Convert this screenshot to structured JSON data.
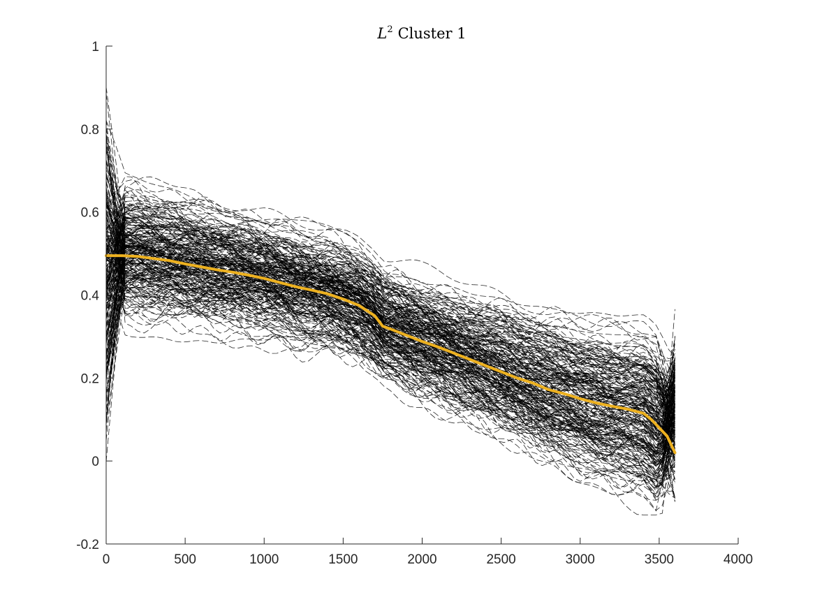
{
  "chart_data": {
    "type": "line",
    "title_base": "L",
    "title_sup": "2",
    "title_rest": "Cluster 1",
    "xlabel": "",
    "ylabel": "",
    "xlim": [
      0,
      4000
    ],
    "ylim": [
      -0.2,
      1
    ],
    "xticks": [
      0,
      500,
      1000,
      1500,
      2000,
      2500,
      3000,
      3500,
      4000
    ],
    "xtick_labels": [
      "0",
      "500",
      "1000",
      "1500",
      "2000",
      "2500",
      "3000",
      "3500",
      "4000"
    ],
    "yticks": [
      -0.2,
      0,
      0.2,
      0.4,
      0.6,
      0.8,
      1
    ],
    "ytick_labels": [
      "-0.2",
      "0",
      "0.2",
      "0.4",
      "0.6",
      "0.8",
      "1"
    ],
    "grid": false,
    "colors": {
      "individual_curves": "#000000",
      "mean_curve": "#EDB120",
      "axes": "#262626"
    },
    "individual_curves_style": "dashed",
    "individual_curves_x_range": [
      0,
      3600
    ],
    "series": [
      {
        "style": "solid",
        "x": [
          0,
          100,
          200,
          300,
          400,
          500,
          600,
          700,
          800,
          900,
          1000,
          1100,
          1200,
          1300,
          1400,
          1500,
          1600,
          1700,
          1750,
          1800,
          1900,
          2000,
          2100,
          2200,
          2300,
          2400,
          2500,
          2600,
          2700,
          2800,
          2900,
          3000,
          3100,
          3200,
          3300,
          3400,
          3450,
          3500,
          3550,
          3600
        ],
        "y": [
          0.495,
          0.495,
          0.493,
          0.488,
          0.483,
          0.475,
          0.468,
          0.461,
          0.455,
          0.448,
          0.44,
          0.43,
          0.42,
          0.412,
          0.403,
          0.39,
          0.375,
          0.35,
          0.325,
          0.318,
          0.303,
          0.288,
          0.275,
          0.26,
          0.245,
          0.23,
          0.215,
          0.2,
          0.188,
          0.172,
          0.162,
          0.15,
          0.14,
          0.132,
          0.125,
          0.115,
          0.1,
          0.08,
          0.06,
          0.02
        ]
      }
    ]
  }
}
